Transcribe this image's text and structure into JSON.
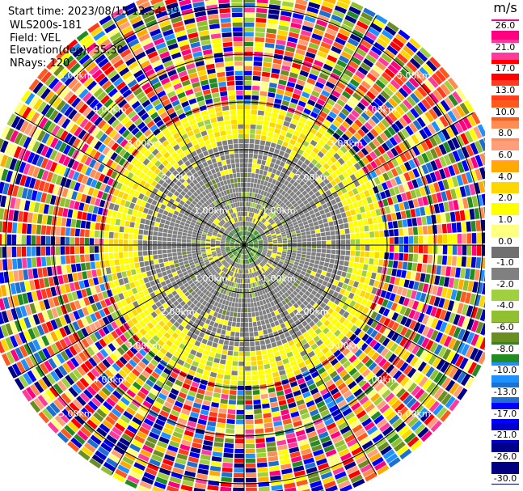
{
  "info": {
    "start_time": "Start time: 2023/08/15 12:54:39",
    "instrument": "WLS200s-181",
    "field": "Field: VEL",
    "elevation": "Elevation(deg): 35.30",
    "nrays": "NRays: 120"
  },
  "colorbar": {
    "unit": "m/s",
    "ticks": [
      "26.0",
      "21.0",
      "17.0",
      "13.0",
      "10.0",
      "8.0",
      "6.0",
      "4.0",
      "2.0",
      "1.0",
      "0.0",
      "-1.0",
      "-2.0",
      "-4.0",
      "-6.0",
      "-8.0",
      "-10.0",
      "-13.0",
      "-17.0",
      "-21.0",
      "-26.0",
      "-30.0"
    ],
    "colors": [
      "#ff0080",
      "#ff3a9e",
      "#ff0000",
      "#ff3c1e",
      "#ff5a1e",
      "#ff8c50",
      "#ff9e78",
      "#ffaa00",
      "#ffd700",
      "#ffff00",
      "#ffff80",
      "#707070",
      "#808080",
      "#a0d040",
      "#90c030",
      "#6b8e23",
      "#228b22",
      "#1e90ff",
      "#1e6fd0",
      "#0000ff",
      "#0000cd",
      "#00008b",
      "#000080"
    ]
  },
  "chart_data": {
    "type": "heatmap",
    "projection": "polar PPI",
    "field": "VEL",
    "units": "m/s",
    "n_rays": 120,
    "elevation_deg": 35.3,
    "range_rings_km": [
      1.0,
      2.0,
      3.0,
      4.0,
      5.0
    ],
    "ring_labels": [
      "1.00km",
      "2.00km",
      "3.00km",
      "4.00km",
      "5.00km"
    ],
    "color_scale_min": -30.0,
    "color_scale_max": 26.0,
    "gridlines": true,
    "radial_lines_deg": [
      0,
      30,
      60,
      90,
      120,
      150,
      180,
      210,
      240,
      270,
      300,
      330
    ],
    "zones": [
      {
        "name": "near-field low velocity",
        "range_km": [
          0.0,
          0.35
        ],
        "dominant_value": 0.0
      },
      {
        "name": "gray cleared region",
        "range_km": [
          0.35,
          2.2
        ],
        "dominant_value": 0.0
      },
      {
        "name": "yellow ring",
        "range_km": [
          2.2,
          2.9
        ],
        "dominant_value": 2.0
      },
      {
        "name": "noisy far field",
        "range_km": [
          2.9,
          5.6
        ],
        "dominant_value": null
      }
    ]
  }
}
